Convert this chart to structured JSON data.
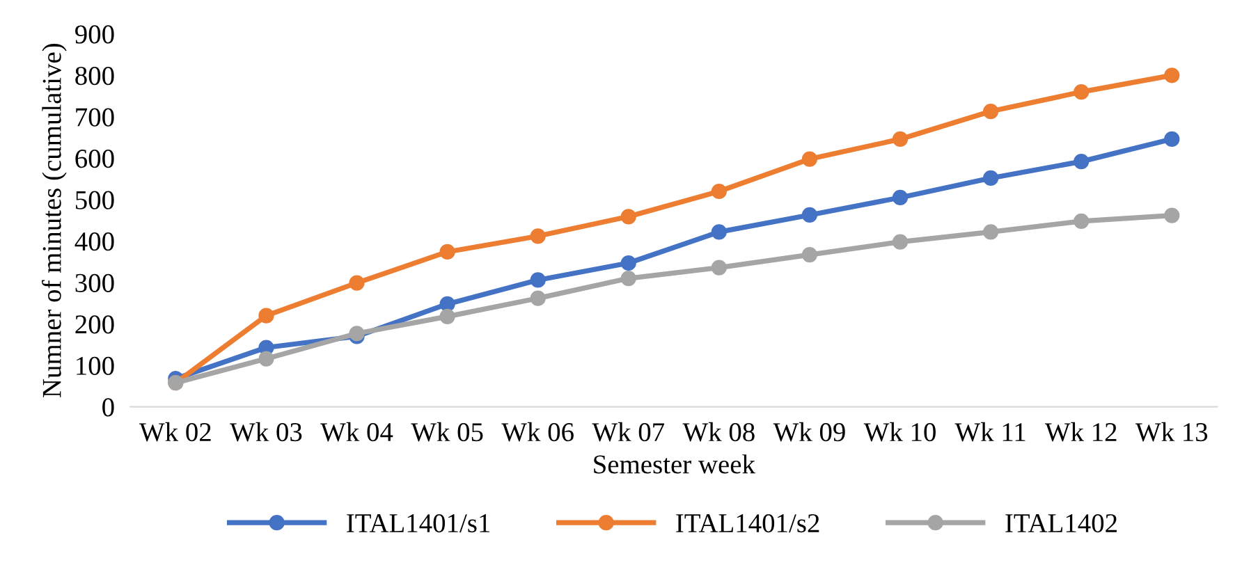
{
  "chart_data": {
    "type": "line",
    "xlabel": "Semester week",
    "ylabel": "Numner of minutes (cumulative)",
    "categories": [
      "Wk 02",
      "Wk 03",
      "Wk 04",
      "Wk 05",
      "Wk 06",
      "Wk 07",
      "Wk 08",
      "Wk 09",
      "Wk 10",
      "Wk 11",
      "Wk 12",
      "Wk 13"
    ],
    "series": [
      {
        "name": "ITAL1401/s1",
        "color": "#4472c4",
        "values": [
          68,
          143,
          170,
          248,
          306,
          347,
          422,
          463,
          505,
          552,
          592,
          646
        ]
      },
      {
        "name": "ITAL1401/s2",
        "color": "#ed7d31",
        "values": [
          58,
          220,
          299,
          374,
          412,
          459,
          520,
          598,
          646,
          713,
          760,
          800
        ]
      },
      {
        "name": "ITAL1402",
        "color": "#a5a5a5",
        "values": [
          58,
          116,
          177,
          218,
          262,
          310,
          336,
          367,
          398,
          422,
          448,
          462
        ]
      }
    ],
    "ylim": [
      0,
      900
    ],
    "yticks": [
      0,
      100,
      200,
      300,
      400,
      500,
      600,
      700,
      800,
      900
    ],
    "grid": false,
    "legend": "bottom",
    "marker": "circle",
    "line_style": "solid"
  }
}
